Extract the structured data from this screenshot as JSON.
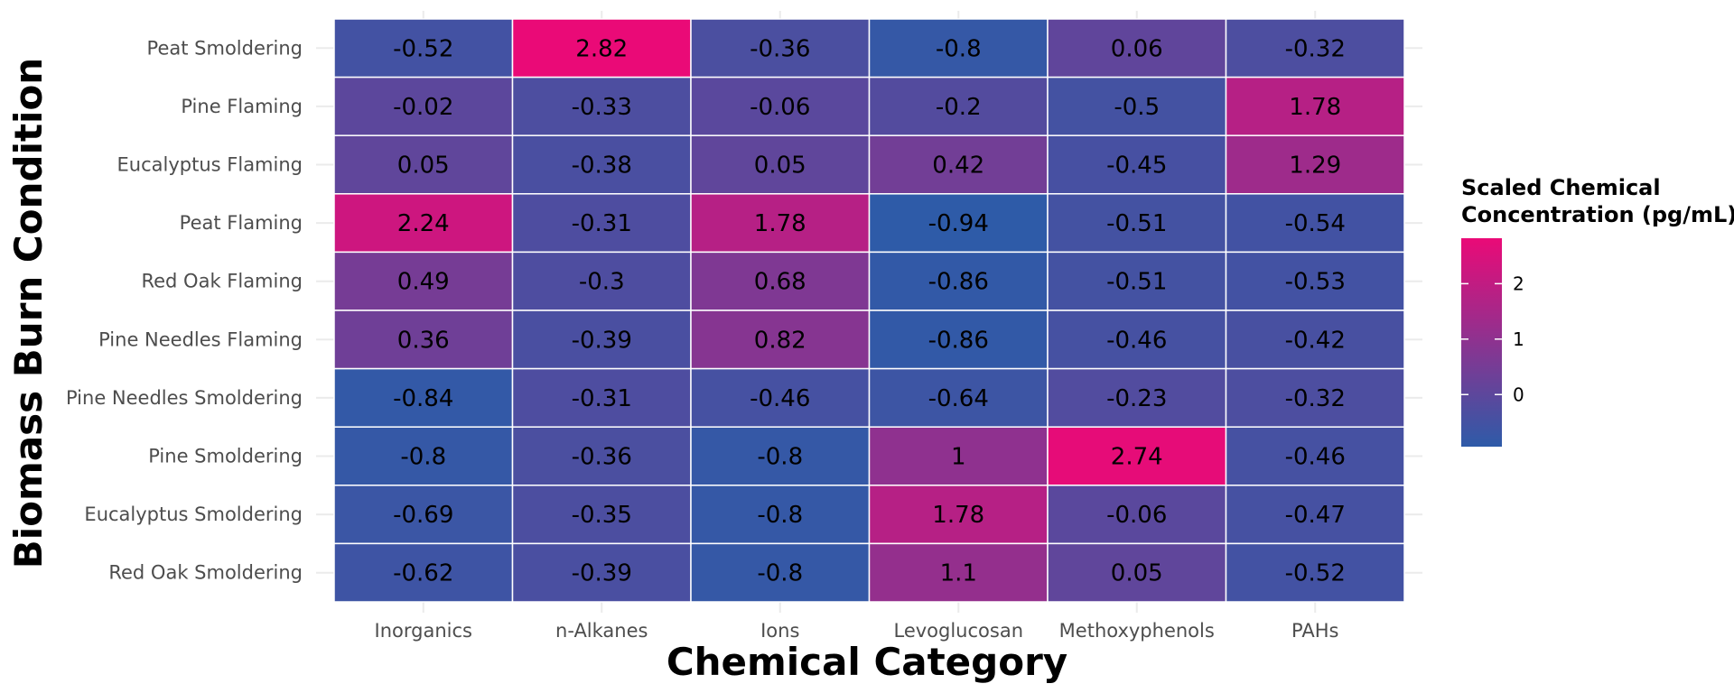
{
  "chart_data": {
    "type": "heatmap",
    "title": "",
    "xlabel": "Chemical Category",
    "ylabel": "Biomass Burn Condition",
    "x_categories": [
      "Inorganics",
      "n-Alkanes",
      "Ions",
      "Levoglucosan",
      "Methoxyphenols",
      "PAHs"
    ],
    "y_categories": [
      "Peat Smoldering",
      "Pine Flaming",
      "Eucalyptus Flaming",
      "Peat Flaming",
      "Red Oak Flaming",
      "Pine Needles Flaming",
      "Pine Needles Smoldering",
      "Pine Smoldering",
      "Eucalyptus Smoldering",
      "Red Oak Smoldering"
    ],
    "values": [
      [
        -0.52,
        2.82,
        -0.36,
        -0.8,
        0.06,
        -0.32
      ],
      [
        -0.02,
        -0.33,
        -0.06,
        -0.2,
        -0.5,
        1.78
      ],
      [
        0.05,
        -0.38,
        0.05,
        0.42,
        -0.45,
        1.29
      ],
      [
        2.24,
        -0.31,
        1.78,
        -0.94,
        -0.51,
        -0.54
      ],
      [
        0.49,
        -0.3,
        0.68,
        -0.86,
        -0.51,
        -0.53
      ],
      [
        0.36,
        -0.39,
        0.82,
        -0.86,
        -0.46,
        -0.42
      ],
      [
        -0.84,
        -0.31,
        -0.46,
        -0.64,
        -0.23,
        -0.32
      ],
      [
        -0.8,
        -0.36,
        -0.8,
        1,
        2.74,
        -0.46
      ],
      [
        -0.69,
        -0.35,
        -0.8,
        1.78,
        -0.06,
        -0.47
      ],
      [
        -0.62,
        -0.39,
        -0.8,
        1.1,
        0.05,
        -0.52
      ]
    ],
    "value_labels": [
      [
        "-0.52",
        "2.82",
        "-0.36",
        "-0.8",
        "0.06",
        "-0.32"
      ],
      [
        "-0.02",
        "-0.33",
        "-0.06",
        "-0.2",
        "-0.5",
        "1.78"
      ],
      [
        "0.05",
        "-0.38",
        "0.05",
        "0.42",
        "-0.45",
        "1.29"
      ],
      [
        "2.24",
        "-0.31",
        "1.78",
        "-0.94",
        "-0.51",
        "-0.54"
      ],
      [
        "0.49",
        "-0.3",
        "0.68",
        "-0.86",
        "-0.51",
        "-0.53"
      ],
      [
        "0.36",
        "-0.39",
        "0.82",
        "-0.86",
        "-0.46",
        "-0.42"
      ],
      [
        "-0.84",
        "-0.31",
        "-0.46",
        "-0.64",
        "-0.23",
        "-0.32"
      ],
      [
        "-0.8",
        "-0.36",
        "-0.8",
        "1",
        "2.74",
        "-0.46"
      ],
      [
        "-0.69",
        "-0.35",
        "-0.8",
        "1.78",
        "-0.06",
        "-0.47"
      ],
      [
        "-0.62",
        "-0.39",
        "-0.8",
        "1.1",
        "0.05",
        "-0.52"
      ]
    ],
    "color_scale": {
      "low_color": "#2e5ba8",
      "high_color": "#ea0a77",
      "min": -0.94,
      "max": 2.82
    },
    "legend": {
      "title_lines": [
        "Scaled Chemical",
        "Concentration (pg/mL)"
      ],
      "ticks": [
        0,
        1,
        2
      ],
      "tick_labels": [
        "0",
        "1",
        "2"
      ],
      "position": "right"
    },
    "grid": true,
    "colors": {
      "grid": "#ebebeb",
      "cell_border": "#ffffff",
      "tick_text": "#4d4d4d"
    }
  }
}
